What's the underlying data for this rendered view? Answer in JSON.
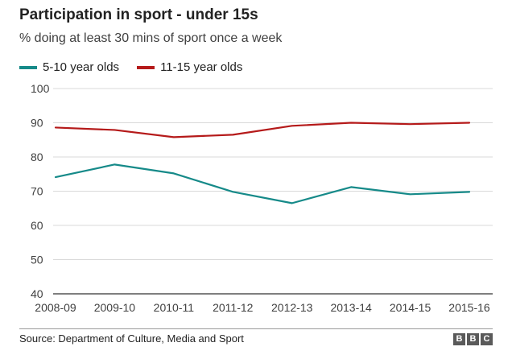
{
  "title": "Participation in sport - under 15s",
  "subtitle": "% doing at least 30 mins of sport once a week",
  "source": "Source: Department of Culture, Media and Sport",
  "logo": [
    "B",
    "B",
    "C"
  ],
  "colors": {
    "series1": "#168a89",
    "series2": "#b51a1a",
    "grid": "#d9d9d9",
    "axis": "#333333"
  },
  "chart_data": {
    "type": "line",
    "title": "Participation in sport - under 15s",
    "subtitle": "% doing at least 30 mins of sport once a week",
    "categories": [
      "2008-09",
      "2009-10",
      "2010-11",
      "2011-12",
      "2012-13",
      "2013-14",
      "2014-15",
      "2015-16"
    ],
    "series": [
      {
        "name": "5-10 year olds",
        "color": "#168a89",
        "values": [
          74.1,
          77.8,
          75.2,
          69.8,
          66.5,
          71.2,
          69.1,
          69.8
        ]
      },
      {
        "name": "11-15 year olds",
        "color": "#b51a1a",
        "values": [
          88.6,
          87.9,
          85.8,
          86.5,
          89.1,
          90.0,
          89.6,
          90.0
        ]
      }
    ],
    "yticks": [
      40,
      50,
      60,
      70,
      80,
      90,
      100
    ],
    "ylim": [
      40,
      100
    ],
    "grid": true,
    "legend": "top-left"
  }
}
